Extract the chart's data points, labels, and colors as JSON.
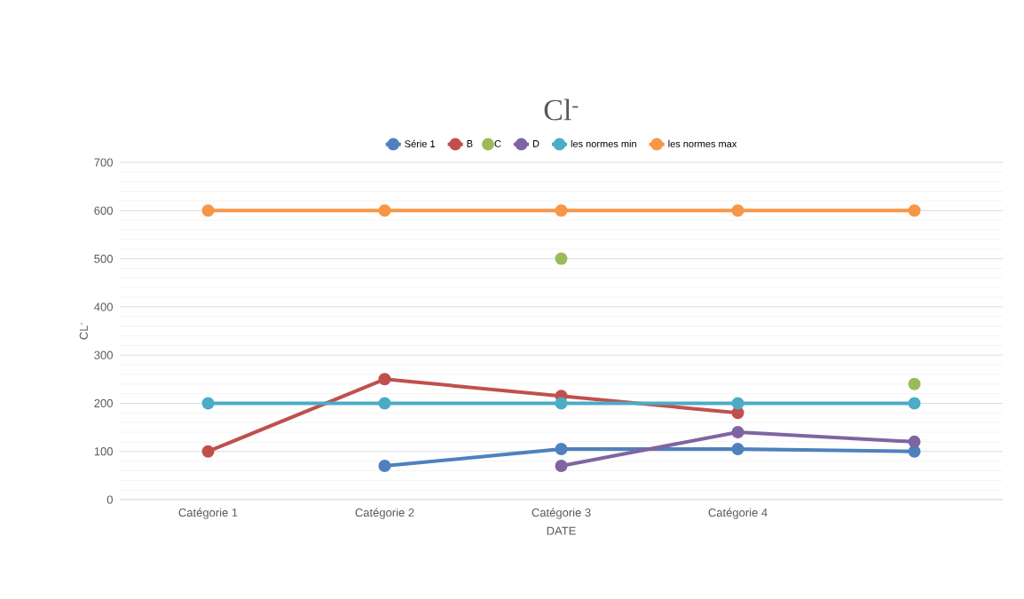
{
  "chart_data": {
    "type": "line",
    "title": "Cl$^{-}$",
    "xlabel": "DATE",
    "ylabel": "CL$^{-}$",
    "categories": [
      "Catégorie 1",
      "Catégorie 2",
      "Catégorie 3",
      "Catégorie 4",
      null
    ],
    "series": [
      {
        "name": "Série 1",
        "color": "#4f81bd",
        "values": [
          null,
          70,
          105,
          105,
          100
        ]
      },
      {
        "name": "B",
        "color": "#c0504d",
        "values": [
          100,
          250,
          215,
          180,
          null
        ]
      },
      {
        "name": "C",
        "type": "scatter",
        "color": "#9bbb59",
        "values": [
          null,
          null,
          500,
          null,
          240
        ]
      },
      {
        "name": "D",
        "color": "#8064a2",
        "values": [
          null,
          null,
          70,
          140,
          120
        ]
      },
      {
        "name": "les normes min",
        "color": "#4bacc6",
        "values": [
          200,
          200,
          200,
          200,
          200
        ]
      },
      {
        "name": "les normes max",
        "color": "#f79646",
        "values": [
          600,
          600,
          600,
          600,
          600
        ]
      }
    ],
    "ylim": [
      0,
      700
    ],
    "yticks": [
      0,
      100,
      200,
      300,
      400,
      500,
      600,
      700
    ],
    "grid": "y",
    "legend": "top",
    "marker": "circle",
    "line_style": "solid"
  }
}
